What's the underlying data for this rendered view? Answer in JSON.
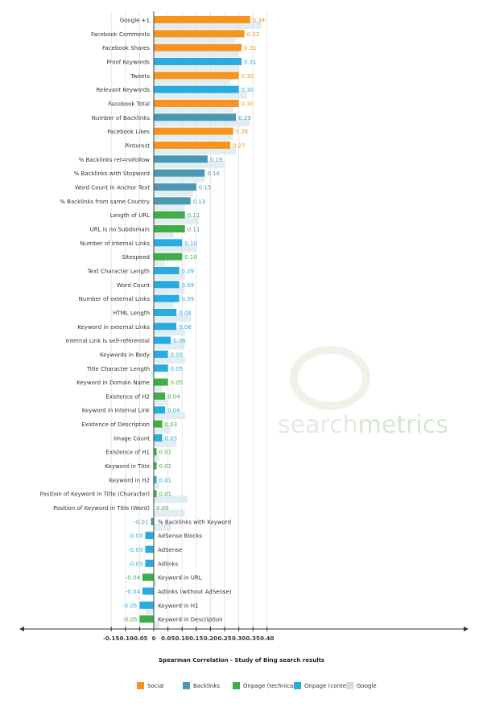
{
  "chart_data": {
    "type": "bar",
    "orientation": "horizontal",
    "xlabel": "Spearman Correlation - Study of Bing search results",
    "xlim": [
      -0.15,
      0.4
    ],
    "xticks": [
      "-0.15",
      "-0.10",
      "-0.05",
      "0",
      "0.05",
      "0.10",
      "0.15",
      "0.20",
      "0.25",
      "0.30",
      "0.35",
      "0.40"
    ],
    "tick_values": [
      -0.15,
      -0.1,
      -0.05,
      0,
      0.05,
      0.1,
      0.15,
      0.2,
      0.25,
      0.3,
      0.35,
      0.4
    ],
    "grid": "vertical",
    "legend_position": "bottom",
    "watermark": "searchmetrics",
    "categories_legend": [
      {
        "name": "Social",
        "color": "#f7941d"
      },
      {
        "name": "Backlinks",
        "color": "#4a98b2"
      },
      {
        "name": "Onpage (technical)",
        "color": "#3fae49"
      },
      {
        "name": "Onpage (content)",
        "color": "#29abe2"
      },
      {
        "name": "Google",
        "color": "#d9d9d9"
      }
    ],
    "colors": {
      "Social": "#f7941d",
      "Backlinks": "#4a98b2",
      "Onpage (technical)": "#3fae49",
      "Onpage (content)": "#29abe2"
    },
    "rows": [
      {
        "label": "Google +1",
        "value": 0.34,
        "value_text": "0.34",
        "group": "Social",
        "google": 0.38
      },
      {
        "label": "Facebook Comments",
        "value": 0.32,
        "value_text": "0.32",
        "group": "Social",
        "google": 0.29
      },
      {
        "label": "Facebook Shares",
        "value": 0.31,
        "value_text": "0.31",
        "group": "Social",
        "google": 0.3
      },
      {
        "label": "Proof Keywords",
        "value": 0.31,
        "value_text": "0.31",
        "group": "Onpage (content)",
        "google": 0.3
      },
      {
        "label": "Tweets",
        "value": 0.3,
        "value_text": "0.30",
        "group": "Social",
        "google": 0.27
      },
      {
        "label": "Relevant Keywords",
        "value": 0.3,
        "value_text": "0.30",
        "group": "Onpage (content)",
        "google": 0.33
      },
      {
        "label": "Facebook Total",
        "value": 0.3,
        "value_text": "0.30",
        "group": "Social",
        "google": 0.28
      },
      {
        "label": "Number of Backlinks",
        "value": 0.29,
        "value_text": "0.29",
        "group": "Backlinks",
        "google": 0.34
      },
      {
        "label": "Facebook Likes",
        "value": 0.28,
        "value_text": "0.28",
        "group": "Social",
        "google": 0.28
      },
      {
        "label": "Pinterest",
        "value": 0.27,
        "value_text": "0.27",
        "group": "Social",
        "google": 0.29
      },
      {
        "label": "% Backlinks rel=nofollow",
        "value": 0.19,
        "value_text": "0.19",
        "group": "Backlinks",
        "google": 0.25
      },
      {
        "label": "% Backlinks with Stopword",
        "value": 0.18,
        "value_text": "0.18",
        "group": "Backlinks",
        "google": 0.18
      },
      {
        "label": "Word Count in Anchor Text",
        "value": 0.15,
        "value_text": "0.15",
        "group": "Backlinks",
        "google": 0.14
      },
      {
        "label": "% Backlinks from same Country",
        "value": 0.13,
        "value_text": "0.13",
        "group": "Backlinks",
        "google": 0.11
      },
      {
        "label": "Length of URL",
        "value": 0.11,
        "value_text": "0.11",
        "group": "Onpage (technical)",
        "google": 0.16
      },
      {
        "label": "URL is no Subdomain",
        "value": 0.11,
        "value_text": "0.11",
        "group": "Onpage (technical)",
        "google": 0.07
      },
      {
        "label": "Number of Internal Links",
        "value": 0.1,
        "value_text": "0.10",
        "group": "Onpage (content)",
        "google": 0.15
      },
      {
        "label": "Sitespeed",
        "value": 0.1,
        "value_text": "0.10",
        "group": "Onpage (technical)",
        "google": 0.04
      },
      {
        "label": "Text Character Length",
        "value": 0.09,
        "value_text": "0.09",
        "group": "Onpage (content)",
        "google": 0.11
      },
      {
        "label": "Word Count",
        "value": 0.09,
        "value_text": "0.09",
        "group": "Onpage (content)",
        "google": 0.11
      },
      {
        "label": "Number of external Links",
        "value": 0.09,
        "value_text": "0.09",
        "group": "Onpage (content)",
        "google": 0.07
      },
      {
        "label": "HTML Length",
        "value": 0.08,
        "value_text": "0.08",
        "group": "Onpage (content)",
        "google": 0.13
      },
      {
        "label": "Keyword in external Links",
        "value": 0.08,
        "value_text": "0.08",
        "group": "Onpage (content)",
        "google": 0.11
      },
      {
        "label": "Internal Link is self-referential",
        "value": 0.06,
        "value_text": "0.06",
        "group": "Onpage (content)",
        "google": 0.11
      },
      {
        "label": "Keywords in Body",
        "value": 0.05,
        "value_text": "0.05",
        "group": "Onpage (content)",
        "google": 0.11
      },
      {
        "label": "Title Character Length",
        "value": 0.05,
        "value_text": "0.05",
        "group": "Onpage (content)",
        "google": -0.01
      },
      {
        "label": "Keyword in Domain Name",
        "value": 0.05,
        "value_text": "0.05",
        "group": "Onpage (technical)",
        "google": 0.03
      },
      {
        "label": "Existence of H2",
        "value": 0.04,
        "value_text": "0.04",
        "group": "Onpage (technical)",
        "google": 0.05
      },
      {
        "label": "Keyword in Internal Link",
        "value": 0.04,
        "value_text": "0.04",
        "group": "Onpage (content)",
        "google": 0.11
      },
      {
        "label": "Existence of Description",
        "value": 0.03,
        "value_text": "0.03",
        "group": "Onpage (technical)",
        "google": 0.06
      },
      {
        "label": "Image Count",
        "value": 0.03,
        "value_text": "0.03",
        "group": "Onpage (content)",
        "google": 0.08
      },
      {
        "label": "Existence of H1",
        "value": 0.01,
        "value_text": "0.01",
        "group": "Onpage (technical)",
        "google": 0.02
      },
      {
        "label": "Keyword in Title",
        "value": 0.01,
        "value_text": "0.01",
        "group": "Onpage (technical)",
        "google": 0.0
      },
      {
        "label": "Keyword in H2",
        "value": 0.01,
        "value_text": "0.01",
        "group": "Onpage (content)",
        "google": 0.02
      },
      {
        "label": "Position of Keyword in Title (Character)",
        "value": 0.01,
        "value_text": "0.01",
        "group": "Onpage (technical)",
        "google": 0.12
      },
      {
        "label": "Position of Keyword in Title (Word)",
        "value": 0.0,
        "value_text": "0.00",
        "group": "Onpage (technical)",
        "google": 0.11
      },
      {
        "label": "% Backlinks with Keyword",
        "value": -0.01,
        "value_text": "-0.01",
        "group": "Backlinks",
        "google": 0.06
      },
      {
        "label": "AdSense Blocks",
        "value": -0.03,
        "value_text": "-0.03",
        "group": "Onpage (content)",
        "google": 0.0
      },
      {
        "label": "AdSense",
        "value": -0.03,
        "value_text": "-0.03",
        "group": "Onpage (content)",
        "google": 0.0
      },
      {
        "label": "Adlinks",
        "value": -0.03,
        "value_text": "-0.03",
        "group": "Onpage (content)",
        "google": 0.0
      },
      {
        "label": "Keyword in URL",
        "value": -0.04,
        "value_text": "-0.04",
        "group": "Onpage (technical)",
        "google": 0.01
      },
      {
        "label": "Adlinks (without AdSense)",
        "value": -0.04,
        "value_text": "-0.04",
        "group": "Onpage (content)",
        "google": 0.0
      },
      {
        "label": "Keyword in H1",
        "value": -0.05,
        "value_text": "-0.05",
        "group": "Onpage (content)",
        "google": -0.03
      },
      {
        "label": "Keyword in Description",
        "value": -0.05,
        "value_text": "-0.05",
        "group": "Onpage (technical)",
        "google": 0.02
      }
    ]
  }
}
